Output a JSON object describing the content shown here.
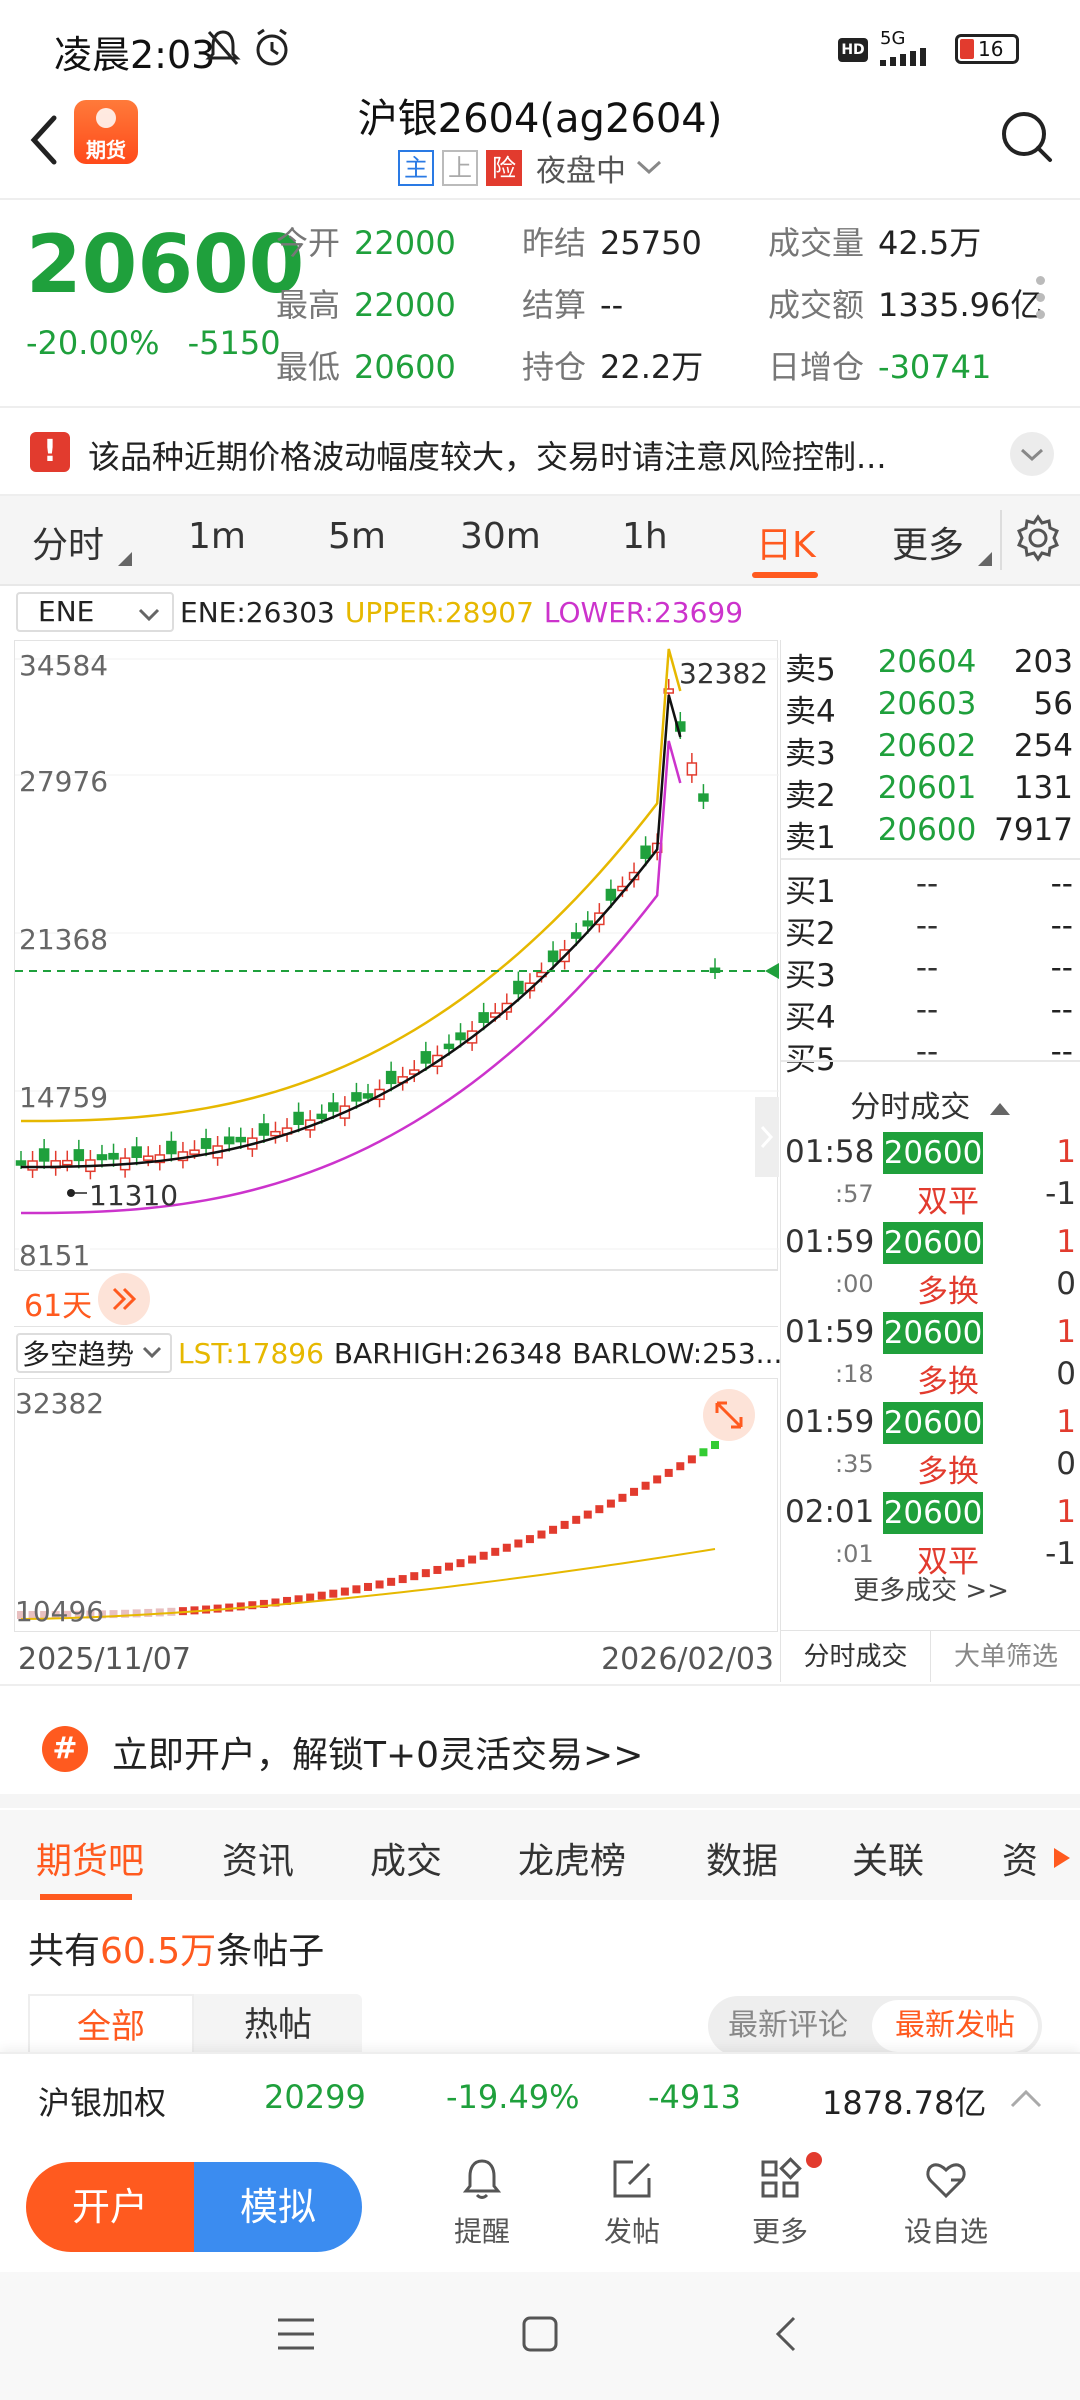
{
  "status": {
    "time": "凌晨2:03",
    "network": "5G",
    "hd": "HD",
    "battery": "16"
  },
  "header": {
    "title": "沪银2604(ag2604)",
    "logo_text": "期货",
    "tags": [
      "主",
      "上",
      "险"
    ],
    "session": "夜盘中"
  },
  "quote": {
    "price": "20600",
    "change_pct": "-20.00%",
    "change": "-5150",
    "cells": [
      {
        "k": "今开",
        "v": "22000",
        "c": "green"
      },
      {
        "k": "昨结",
        "v": "25750",
        "c": "dark"
      },
      {
        "k": "成交量",
        "v": "42.5万",
        "c": "dark"
      },
      {
        "k": "最高",
        "v": "22000",
        "c": "green"
      },
      {
        "k": "结算",
        "v": "--",
        "c": "dark"
      },
      {
        "k": "成交额",
        "v": "1335.96亿",
        "c": "dark"
      },
      {
        "k": "最低",
        "v": "20600",
        "c": "green"
      },
      {
        "k": "持仓",
        "v": "22.2万",
        "c": "dark"
      },
      {
        "k": "日增仓",
        "v": "-30741",
        "c": "green"
      }
    ]
  },
  "notice": {
    "icon": "!",
    "text": "该品种近期价格波动幅度较大，交易时请注意风险控制..."
  },
  "tabs": [
    "分时",
    "1m",
    "5m",
    "30m",
    "1h",
    "日K",
    "更多"
  ],
  "active_tab": "日K",
  "indicator": {
    "select": "ENE",
    "ene": "ENE:26303",
    "upper": "UPPER:28907",
    "lower": "LOWER:23699"
  },
  "kchart": {
    "y_labels": [
      "34584",
      "27976",
      "21368",
      "14759",
      "8151"
    ],
    "high_label": "32382",
    "low_label": "11310",
    "days": "61天"
  },
  "subchart": {
    "select": "多空趋势",
    "lst": "LST:17896",
    "barhigh": "BARHIGH:26348",
    "barlow": "BARLOW:253...",
    "y_top": "32382",
    "y_bottom": "10496"
  },
  "dates": {
    "start": "2025/11/07",
    "end": "2026/02/03"
  },
  "book": {
    "asks": [
      {
        "label": "卖5",
        "price": "20604",
        "vol": "203"
      },
      {
        "label": "卖4",
        "price": "20603",
        "vol": "56"
      },
      {
        "label": "卖3",
        "price": "20602",
        "vol": "254"
      },
      {
        "label": "卖2",
        "price": "20601",
        "vol": "131"
      },
      {
        "label": "卖1",
        "price": "20600",
        "vol": "7917"
      }
    ],
    "bids": [
      {
        "label": "买1",
        "price": "--",
        "vol": "--"
      },
      {
        "label": "买2",
        "price": "--",
        "vol": "--"
      },
      {
        "label": "买3",
        "price": "--",
        "vol": "--"
      },
      {
        "label": "买4",
        "price": "--",
        "vol": "--"
      },
      {
        "label": "买5",
        "price": "--",
        "vol": "--"
      }
    ],
    "ticks_title": "分时成交",
    "ticks": [
      {
        "time": "01:58",
        "sec": ":57",
        "price": "20600",
        "vol": "1",
        "type": "双平",
        "oi": "-1"
      },
      {
        "time": "01:59",
        "sec": ":00",
        "price": "20600",
        "vol": "1",
        "type": "多换",
        "oi": "0"
      },
      {
        "time": "01:59",
        "sec": ":18",
        "price": "20600",
        "vol": "1",
        "type": "多换",
        "oi": "0"
      },
      {
        "time": "01:59",
        "sec": ":35",
        "price": "20600",
        "vol": "1",
        "type": "多换",
        "oi": "0"
      },
      {
        "time": "02:01",
        "sec": ":01",
        "price": "20600",
        "vol": "1",
        "type": "双平",
        "oi": "-1"
      }
    ],
    "more": "更多成交 >>",
    "tab1": "分时成交",
    "tab2": "大单筛选"
  },
  "banner": {
    "icon": "#",
    "text": "立即开户，解锁T+0灵活交易>>"
  },
  "bottom_tabs": [
    "期货吧",
    "资讯",
    "成交",
    "龙虎榜",
    "数据",
    "关联",
    "资"
  ],
  "posts": {
    "prefix": "共有",
    "count": "60.5万",
    "suffix": "条帖子",
    "filter_all": "全部",
    "filter_hot": "热帖",
    "sort_comment": "最新评论",
    "sort_post": "最新发帖"
  },
  "index": {
    "name": "沪银加权",
    "price": "20299",
    "pct": "-19.49%",
    "chg": "-4913",
    "amount": "1878.78亿"
  },
  "actions": {
    "open": "开户",
    "sim": "模拟",
    "remind": "提醒",
    "post": "发帖",
    "more": "更多",
    "watch": "设自选"
  },
  "colors": {
    "up": "#e23b2e",
    "down": "#1fa03c",
    "accent": "#ff5a1f",
    "ene_upper": "#e6b800",
    "ene_lower": "#cc33cc"
  }
}
